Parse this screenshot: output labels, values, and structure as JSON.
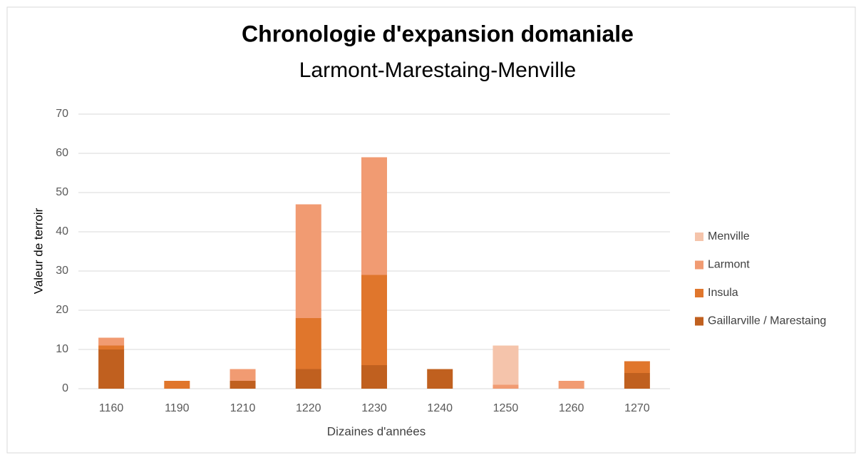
{
  "chart_data": {
    "type": "stacked_bar",
    "title": "Chronologie d'expansion domaniale",
    "subtitle": "Larmont-Marestaing-Menville",
    "x_label": "Dizaines d'années",
    "y_label": "Valeur de terroir",
    "categories": [
      "1160",
      "1190",
      "1210",
      "1220",
      "1230",
      "1240",
      "1250",
      "1260",
      "1270"
    ],
    "series": [
      {
        "name": "Gaillarville / Marestaing",
        "color": "#c0601f",
        "values": [
          10,
          0,
          2,
          5,
          6,
          5,
          0,
          0,
          4
        ]
      },
      {
        "name": "Insula",
        "color": "#e0762c",
        "values": [
          1,
          2,
          0,
          13,
          23,
          0,
          0,
          0,
          3
        ]
      },
      {
        "name": "Larmont",
        "color": "#f19b72",
        "values": [
          2,
          0,
          3,
          29,
          30,
          0,
          1,
          2,
          0
        ]
      },
      {
        "name": "Menville",
        "color": "#f5c4ab",
        "values": [
          0,
          0,
          0,
          0,
          0,
          0,
          10,
          0,
          0
        ]
      }
    ],
    "ylim": [
      0,
      70
    ],
    "yticks": [
      0,
      10,
      20,
      30,
      40,
      50,
      60,
      70
    ],
    "grid": true,
    "legend": "right"
  }
}
